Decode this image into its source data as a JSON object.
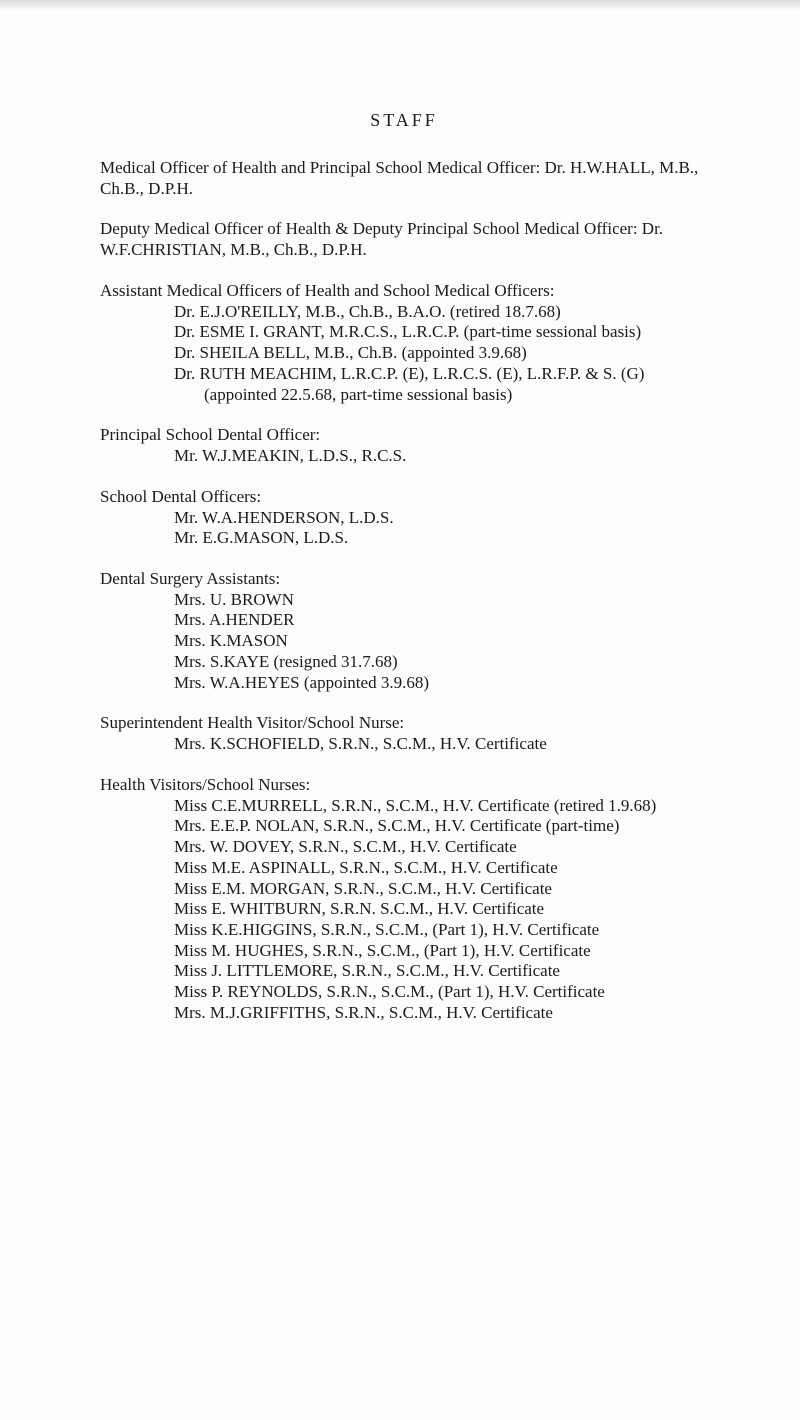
{
  "page": {
    "background_color": "#fdfcfa",
    "text_color": "#1b1b1b",
    "font_family": "Times New Roman",
    "base_font_size_pt": 12
  },
  "heading": "STAFF",
  "sections": {
    "moh": "Medical Officer of Health and Principal School Medical Officer: Dr. H.W.HALL, M.B., Ch.B., D.P.H.",
    "deputy": "Deputy Medical Officer of Health & Deputy Principal School Medical Officer: Dr. W.F.CHRISTIAN, M.B., Ch.B., D.P.H.",
    "amo_head": "Assistant Medical Officers of Health and School Medical Officers:",
    "amo_list": [
      "Dr. E.J.O'REILLY, M.B., Ch.B., B.A.O. (retired 18.7.68)",
      "Dr. ESME I. GRANT, M.R.C.S., L.R.C.P. (part-time sessional basis)",
      "Dr. SHEILA BELL, M.B., Ch.B. (appointed 3.9.68)",
      "Dr. RUTH MEACHIM, L.R.C.P. (E), L.R.C.S. (E), L.R.F.P. & S. (G) (appointed 22.5.68, part-time sessional basis)"
    ],
    "principal_dental_head": "Principal School Dental Officer:",
    "principal_dental_list": [
      "Mr. W.J.MEAKIN, L.D.S., R.C.S."
    ],
    "school_dental_head": "School Dental Officers:",
    "school_dental_list": [
      "Mr. W.A.HENDERSON, L.D.S.",
      "Mr. E.G.MASON, L.D.S."
    ],
    "dental_surgery_head": "Dental Surgery Assistants:",
    "dental_surgery_list": [
      "Mrs. U. BROWN",
      "Mrs. A.HENDER",
      "Mrs. K.MASON",
      "Mrs. S.KAYE (resigned 31.7.68)",
      "Mrs. W.A.HEYES (appointed 3.9.68)"
    ],
    "superintendent_head": "Superintendent Health Visitor/School Nurse:",
    "superintendent_list": [
      "Mrs. K.SCHOFIELD, S.R.N., S.C.M., H.V. Certificate"
    ],
    "hv_head": "Health Visitors/School Nurses:",
    "hv_list": [
      "Miss C.E.MURRELL, S.R.N., S.C.M., H.V. Certificate (retired 1.9.68)",
      "Mrs. E.E.P. NOLAN, S.R.N., S.C.M., H.V. Certificate (part-time)",
      "Mrs. W. DOVEY, S.R.N., S.C.M., H.V. Certificate",
      "Miss M.E. ASPINALL, S.R.N., S.C.M., H.V. Certificate",
      "Miss E.M. MORGAN, S.R.N., S.C.M., H.V. Certificate",
      "Miss E. WHITBURN, S.R.N. S.C.M., H.V. Certificate",
      "Miss K.E.HIGGINS, S.R.N., S.C.M., (Part 1), H.V. Certificate",
      "Miss M. HUGHES, S.R.N., S.C.M., (Part 1), H.V. Certificate",
      "Miss J. LITTLEMORE, S.R.N., S.C.M., H.V. Certificate",
      "Miss P. REYNOLDS, S.R.N., S.C.M., (Part 1), H.V. Certificate",
      "Mrs. M.J.GRIFFITHS, S.R.N., S.C.M., H.V. Certificate"
    ]
  }
}
